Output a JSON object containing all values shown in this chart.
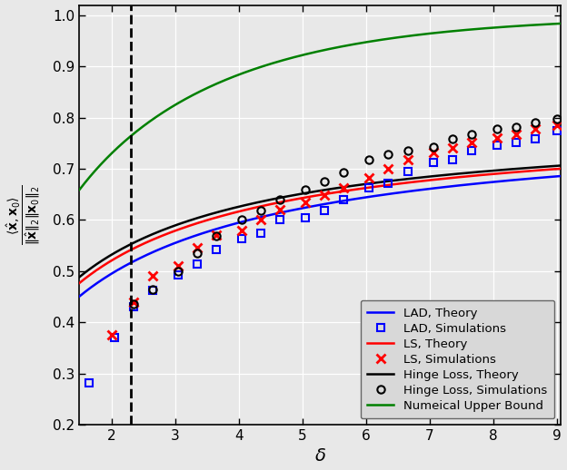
{
  "title": "",
  "xlabel": "$\\delta$",
  "ylabel_parts": [
    "$\\langle \\hat{\\mathbf{x}}, \\mathbf{x}_0 \\rangle$",
    "$\\|\\hat{\\mathbf{x}}\\|_2 \\|\\mathbf{x}_0\\|_2$"
  ],
  "xlim": [
    1.5,
    9.05
  ],
  "ylim": [
    0.2,
    1.02
  ],
  "dashed_vline_x": 2.3,
  "xticks": [
    2,
    3,
    4,
    5,
    6,
    7,
    8,
    9
  ],
  "yticks": [
    0.2,
    0.3,
    0.4,
    0.5,
    0.6,
    0.7,
    0.8,
    0.9,
    1.0
  ],
  "lad_theory_color": "#0000FF",
  "ls_theory_color": "#FF0000",
  "hinge_theory_color": "#000000",
  "numerical_upper_bound_color": "#008000",
  "background_color": "#E8E8E8",
  "grid_color": "#FFFFFF",
  "lad_sim_x": [
    1.65,
    2.05,
    2.35,
    2.65,
    3.05,
    3.35,
    3.65,
    4.05,
    4.35,
    4.65,
    5.05,
    5.35,
    5.65,
    6.05,
    6.35,
    6.65,
    7.05,
    7.35,
    7.65,
    8.05,
    8.35,
    8.65,
    9.0
  ],
  "lad_sim_y": [
    0.282,
    0.37,
    0.43,
    0.462,
    0.493,
    0.513,
    0.543,
    0.563,
    0.575,
    0.6,
    0.605,
    0.618,
    0.64,
    0.662,
    0.672,
    0.695,
    0.712,
    0.718,
    0.735,
    0.747,
    0.752,
    0.758,
    0.775
  ],
  "ls_sim_x": [
    2.0,
    2.35,
    2.65,
    3.05,
    3.35,
    3.65,
    4.05,
    4.35,
    4.65,
    5.05,
    5.35,
    5.65,
    6.05,
    6.35,
    6.65,
    7.05,
    7.35,
    7.65,
    8.05,
    8.35,
    8.65,
    9.0
  ],
  "ls_sim_y": [
    0.375,
    0.44,
    0.49,
    0.51,
    0.545,
    0.57,
    0.58,
    0.6,
    0.62,
    0.635,
    0.648,
    0.662,
    0.682,
    0.7,
    0.718,
    0.732,
    0.74,
    0.752,
    0.76,
    0.768,
    0.778,
    0.785
  ],
  "hinge_sim_x": [
    2.35,
    2.65,
    3.05,
    3.35,
    3.65,
    4.05,
    4.35,
    4.65,
    5.05,
    5.35,
    5.65,
    6.05,
    6.35,
    6.65,
    7.05,
    7.35,
    7.65,
    8.05,
    8.35,
    8.65,
    9.0
  ],
  "hinge_sim_y": [
    0.435,
    0.465,
    0.5,
    0.535,
    0.568,
    0.6,
    0.618,
    0.64,
    0.66,
    0.675,
    0.693,
    0.718,
    0.728,
    0.735,
    0.742,
    0.758,
    0.768,
    0.778,
    0.782,
    0.79,
    0.798
  ]
}
